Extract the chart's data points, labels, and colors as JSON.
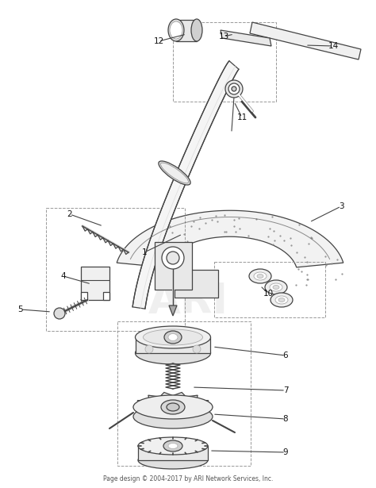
{
  "footer": "Page design © 2004-2017 by ARI Network Services, Inc.",
  "bg_color": "#ffffff",
  "line_color": "#444444",
  "lw": 0.9
}
